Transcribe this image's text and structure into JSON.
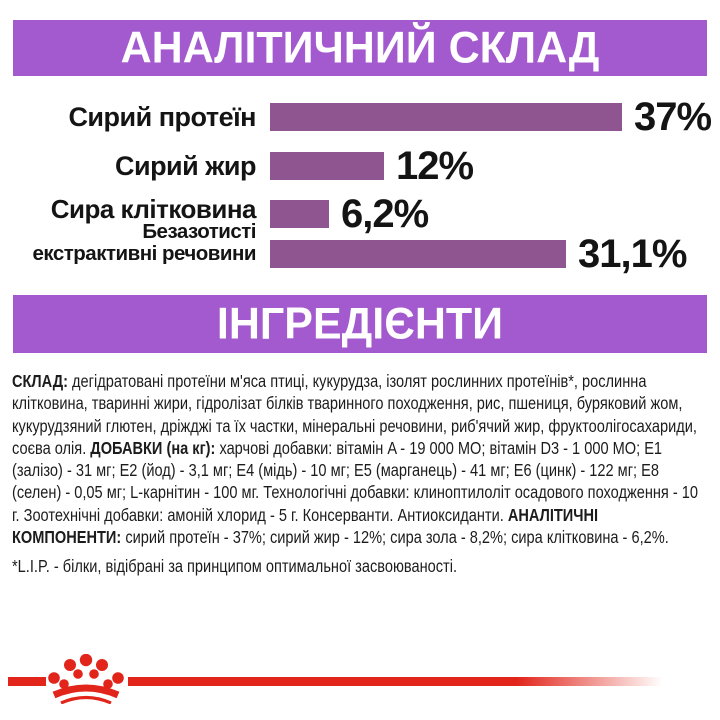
{
  "colors": {
    "banner_purple": "#a35ace",
    "bar_purple": "#8f5590",
    "brand_red": "#e2251b",
    "text_dark": "#1c1c1c",
    "banner_text": "#ffffff"
  },
  "sections": {
    "analytical": {
      "title": "АНАЛІТИЧНИЙ СКЛАД"
    },
    "ingredients": {
      "title": "ІНГРЕДІЄНТИ"
    }
  },
  "chart_data": {
    "type": "bar",
    "orientation": "horizontal",
    "title": "АНАЛІТИЧНИЙ СКЛАД",
    "categories": [
      "Сирий протеїн",
      "Сирий жир",
      "Сира клітковина",
      "Безазотисті екстрактивні речовини"
    ],
    "category_display": [
      [
        "Сирий протеїн"
      ],
      [
        "Сирий жир"
      ],
      [
        "Сира клітковина"
      ],
      [
        "Безазотисті",
        "екстрактивні речовини"
      ]
    ],
    "values": [
      37,
      12,
      6.2,
      31.1
    ],
    "value_labels": [
      "37%",
      "12%",
      "6,2%",
      "31,1%"
    ],
    "unit": "%",
    "xlim": [
      0,
      37
    ],
    "bar_color": "#8f5590",
    "grid": false,
    "legend": false
  },
  "ingredients_text": {
    "segments": [
      {
        "text": "СКЛАД:",
        "bold": true
      },
      {
        "text": " дегідратовані протеїни м'яса птиці, кукурудза, ізолят рослинних протеїнів*, рослинна клітковина, тваринні жири, гідролізат білків тваринного походження, рис, пшениця, буряковий жом, кукурудзяний глютен, дріжджі та їх частки, мінеральні речовини, риб'ячий жир, фруктоолігосахариди, соєва олія. ",
        "bold": false
      },
      {
        "text": "ДОБАВКИ (на кг):",
        "bold": true
      },
      {
        "text": " харчові добавки: вітамін A - 19 000 МО; вітамін D3 - 1 000 МО; E1 (залізо) - 31 мг; E2 (йод) - 3,1 мг; E4 (мідь) - 10 мг; E5 (марганець) - 41 мг; E6 (цинк) - 122 мг; E8 (селен) - 0,05 мг; L-карнітин - 100 мг. Технологічні добавки: клиноптилоліт осадового походження - 10 г. Зоотехнічні добавки: амоній хлорид - 5 г. Консерванти. Антиоксиданти. ",
        "bold": false
      },
      {
        "text": "АНАЛІТИЧНІ КОМПОНЕНТИ:",
        "bold": true
      },
      {
        "text": " сирий протеїн - 37%; сирий жир - 12%; сира зола - 8,2%; сира клітковина - 6,2%.",
        "bold": false
      }
    ],
    "footnote": "*L.I.P. - білки, відібрані за принципом оптимальної засвоюваності."
  },
  "footer": {
    "logo_icon": "royal-canin-crown-icon"
  }
}
